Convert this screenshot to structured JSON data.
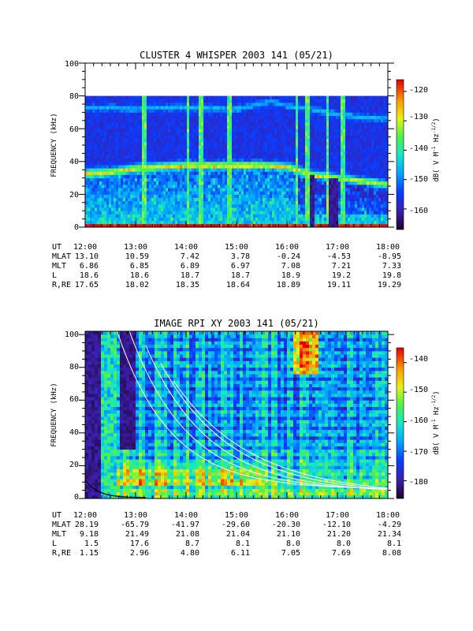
{
  "chart_data": [
    {
      "type": "heatmap",
      "title": "CLUSTER 4 WHISPER 2003 141 (05/21)",
      "ylabel": "FREQUENCY (kHz)",
      "yticks": [
        "0",
        "20",
        "40",
        "60",
        "80",
        "100"
      ],
      "ylim": [
        0,
        100
      ],
      "data_ylim": [
        0,
        80
      ],
      "xticks": [
        "12:00",
        "13:00",
        "14:00",
        "15:00",
        "16:00",
        "17:00",
        "18:00"
      ],
      "xlim_hours": [
        12,
        18
      ],
      "colorbar": {
        "label": "dB( V M⁻¹ Hz⁻¹ᐟ²)",
        "label_parts": {
          "a": "dB( V M",
          "b": "-1",
          "c": " Hz",
          "d": "-1/2",
          "e": ")"
        },
        "ticks": [
          "-120",
          "-130",
          "-140",
          "-150",
          "-160"
        ],
        "tick_values": [
          -120,
          -130,
          -140,
          -150,
          -160
        ],
        "range": [
          -167,
          -116
        ]
      },
      "ephemeris": [
        {
          "label": "UT",
          "values": [
            "12:00",
            "13:00",
            "14:00",
            "15:00",
            "16:00",
            "17:00",
            "18:00"
          ]
        },
        {
          "label": "MLAT",
          "values": [
            "13.10",
            "10.59",
            "7.42",
            "3.78",
            "-0.24",
            "-4.53",
            "-8.95"
          ]
        },
        {
          "label": "MLT",
          "values": [
            "6.86",
            "6.85",
            "6.89",
            "6.97",
            "7.08",
            "7.21",
            "7.33"
          ]
        },
        {
          "label": "L",
          "values": [
            "18.6",
            "18.6",
            "18.7",
            "18.7",
            "18.9",
            "19.2",
            "19.8"
          ]
        },
        {
          "label": "R,RE",
          "values": [
            "17.65",
            "18.02",
            "18.35",
            "18.64",
            "18.89",
            "19.11",
            "19.29"
          ]
        }
      ],
      "features": {
        "plasma_line_khz": [
          [
            12.0,
            33
          ],
          [
            12.5,
            34
          ],
          [
            13.0,
            36
          ],
          [
            13.5,
            37
          ],
          [
            14.0,
            38
          ],
          [
            14.5,
            38
          ],
          [
            15.0,
            38
          ],
          [
            15.5,
            38
          ],
          [
            16.0,
            37
          ],
          [
            16.2,
            35
          ],
          [
            16.5,
            32
          ],
          [
            17.0,
            30
          ],
          [
            17.5,
            28
          ],
          [
            18.0,
            26
          ]
        ],
        "upper_band_khz": [
          [
            12.5,
            73
          ],
          [
            13.0,
            72
          ],
          [
            13.5,
            73
          ],
          [
            14.0,
            73
          ],
          [
            15.0,
            72
          ],
          [
            15.7,
            77
          ],
          [
            16.0,
            74
          ],
          [
            16.5,
            72
          ],
          [
            17.0,
            69
          ],
          [
            17.5,
            67
          ],
          [
            18.0,
            66
          ]
        ],
        "broadband_spikes_hours": [
          13.18,
          14.05,
          14.3,
          14.85,
          16.2,
          16.4,
          16.8,
          17.1
        ]
      }
    },
    {
      "type": "heatmap",
      "title": "IMAGE RPI XY 2003 141 (05/21)",
      "ylabel": "FREQUENCY (kHz)",
      "yticks": [
        "0",
        "20",
        "40",
        "60",
        "80",
        "100"
      ],
      "ylim": [
        0,
        102
      ],
      "xticks": [
        "12:00",
        "13:00",
        "14:00",
        "15:00",
        "16:00",
        "17:00",
        "18:00"
      ],
      "xlim_hours": [
        12,
        18
      ],
      "colorbar": {
        "label": "dB( V M⁻¹ Hz⁻¹ᐟ²)",
        "label_parts": {
          "a": "dB( V M",
          "b": "-1",
          "c": " Hz",
          "d": "-1/2",
          "e": ")"
        },
        "ticks": [
          "-140",
          "-150",
          "-160",
          "-170",
          "-180"
        ],
        "tick_values": [
          -140,
          -150,
          -160,
          -170,
          -180
        ],
        "range": [
          -186,
          -135
        ]
      },
      "ephemeris": [
        {
          "label": "UT",
          "values": [
            "12:00",
            "13:00",
            "14:00",
            "15:00",
            "16:00",
            "17:00",
            "18:00"
          ]
        },
        {
          "label": "MLAT",
          "values": [
            "28.19",
            "-65.79",
            "-41.97",
            "-29.60",
            "-20.30",
            "-12.10",
            "-4.29"
          ]
        },
        {
          "label": "MLT",
          "values": [
            "9.18",
            "21.49",
            "21.08",
            "21.04",
            "21.10",
            "21.20",
            "21.34"
          ]
        },
        {
          "label": "L",
          "values": [
            "1.5",
            "17.6",
            "8.7",
            "8.1",
            "8.0",
            "8.0",
            "8.1"
          ]
        },
        {
          "label": "R,RE",
          "values": [
            "1.15",
            "2.96",
            "4.80",
            "6.11",
            "7.05",
            "7.69",
            "8.08"
          ]
        }
      ],
      "features": {
        "white_curves": [
          {
            "start_hour": 12.45,
            "floor_khz": 5.5,
            "amplitude": 115,
            "decay_hours": 1.05
          },
          {
            "start_hour": 12.85,
            "floor_khz": 4.5,
            "amplitude": 100,
            "decay_hours": 1.15
          },
          {
            "start_hour": 13.2,
            "floor_khz": 3.5,
            "amplitude": 90,
            "decay_hours": 1.25
          },
          {
            "start_hour": 13.5,
            "floor_khz": 2.5,
            "amplitude": 80,
            "decay_hours": 1.4
          },
          {
            "start_hour": 13.75,
            "floor_khz": 1.8,
            "amplitude": 70,
            "decay_hours": 1.55
          }
        ],
        "black_curve": {
          "start_hour": 12.0,
          "floor_khz": 0.5,
          "amplitude": 11,
          "decay_hours": 0.25
        },
        "hot_region_hours": [
          16.1,
          16.6
        ]
      }
    }
  ]
}
